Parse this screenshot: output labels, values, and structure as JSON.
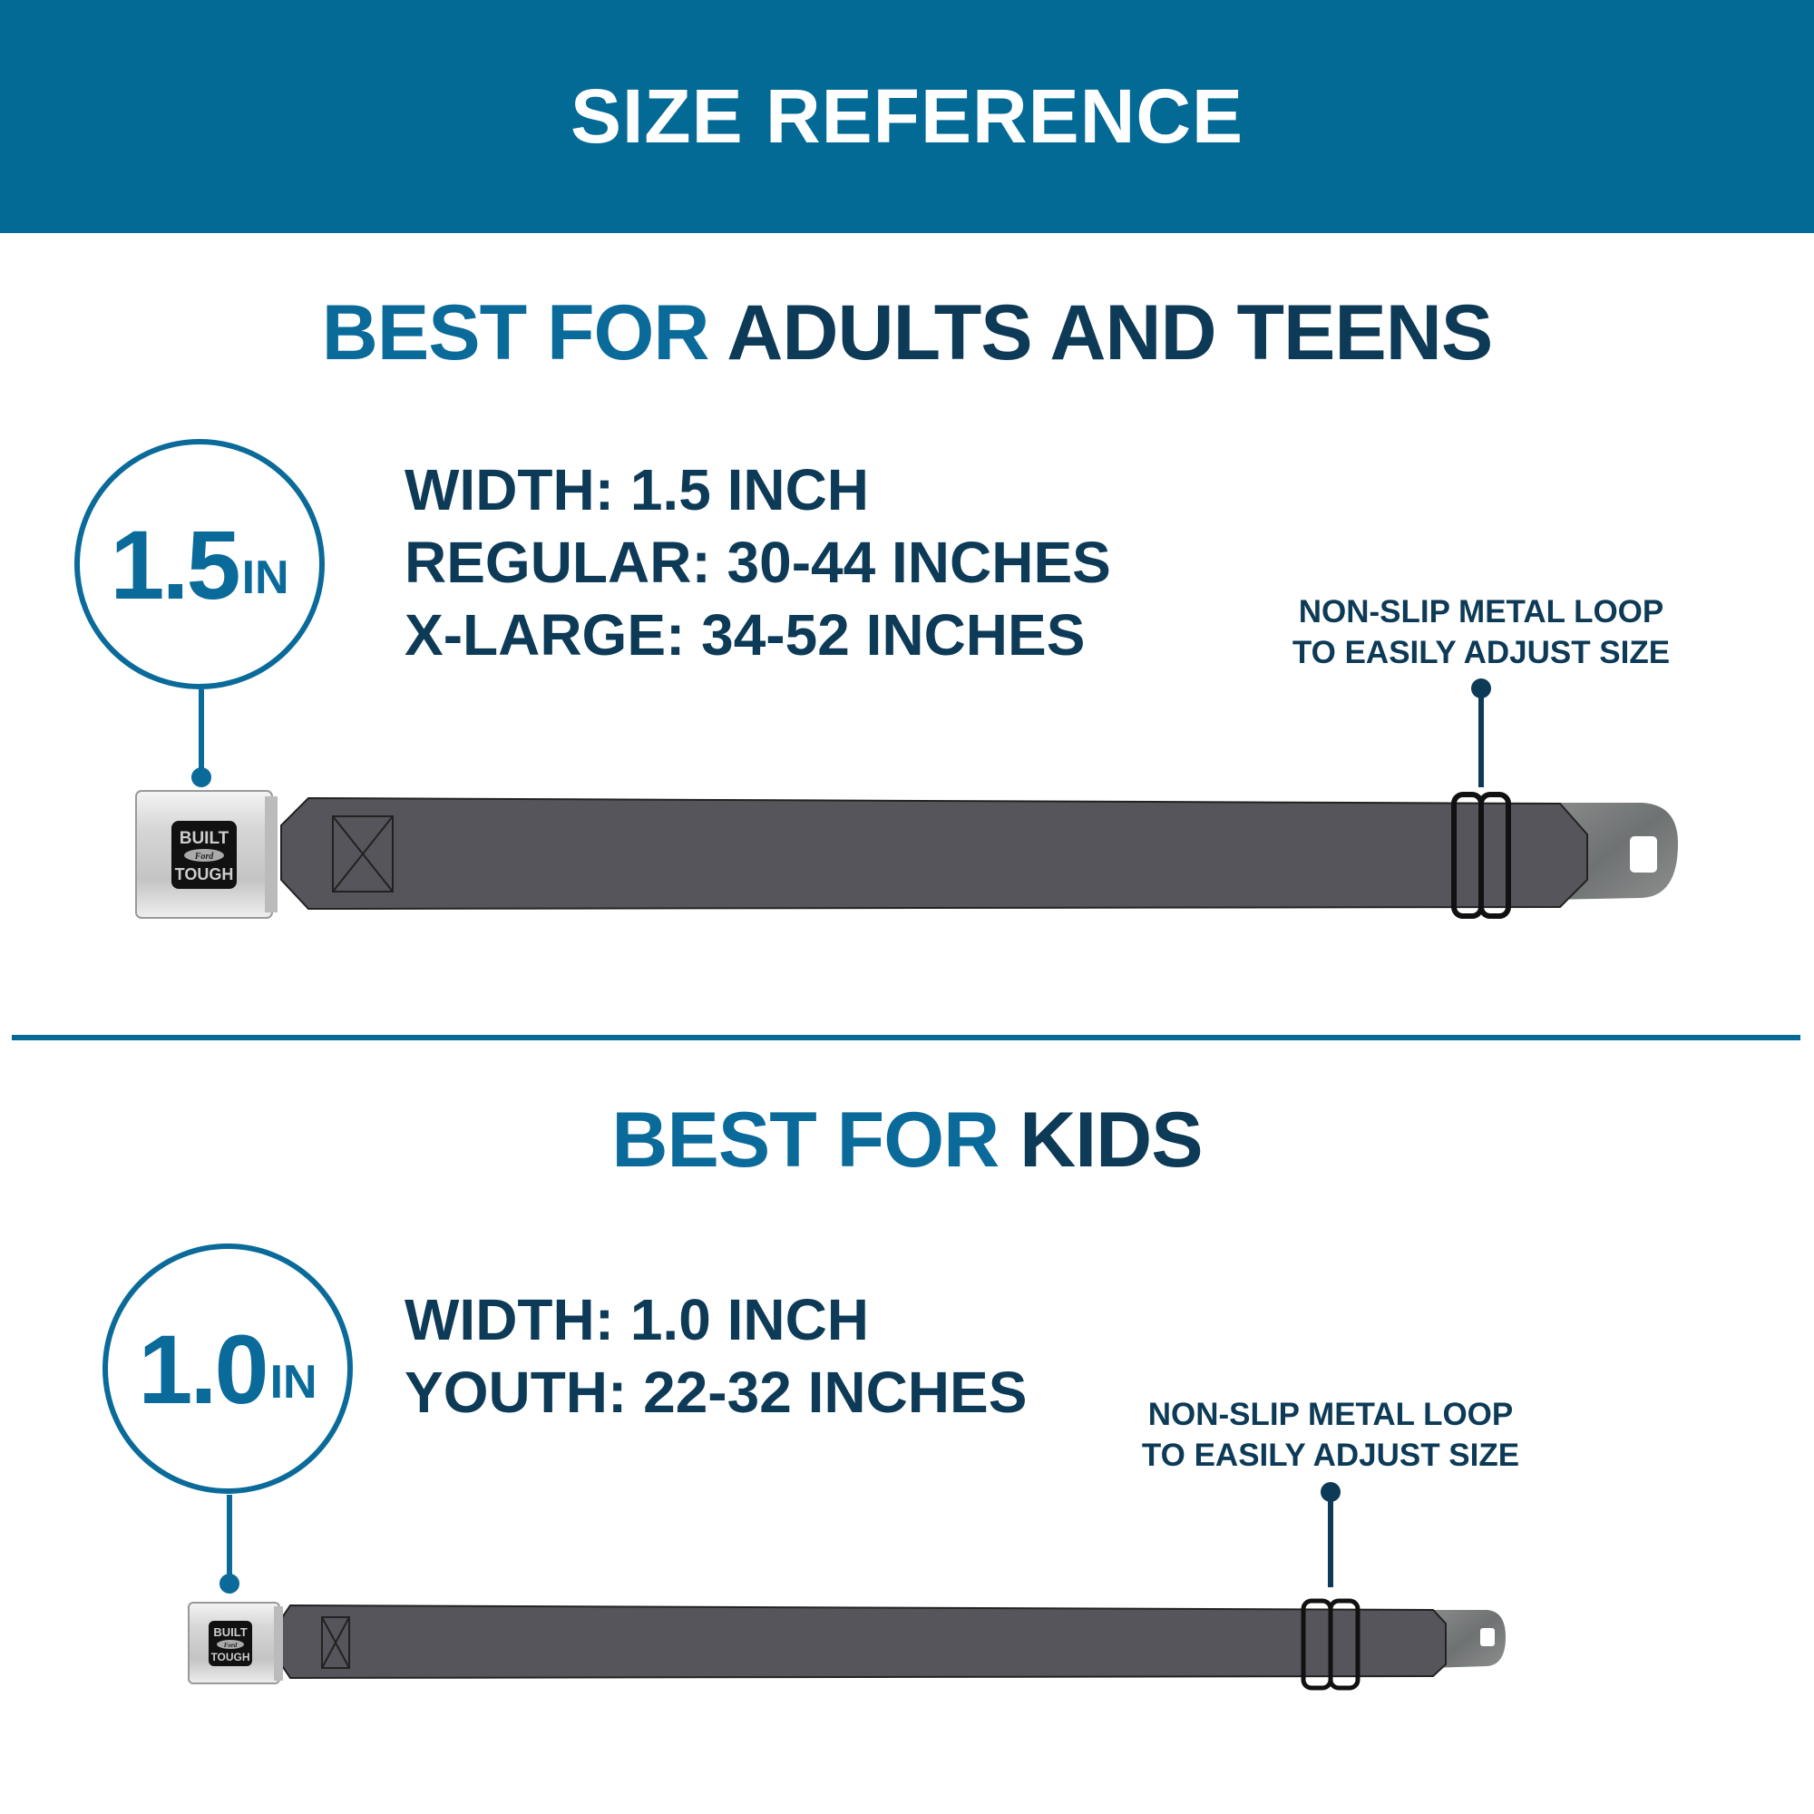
{
  "header": {
    "title": "SIZE REFERENCE"
  },
  "colors": {
    "header_bg": "#036a96",
    "accent_blue": "#0a6a9a",
    "navy": "#0d3a56",
    "strap": "#55555b"
  },
  "adults": {
    "heading_prefix": "BEST FOR",
    "heading_main": "ADULTS AND TEENS",
    "badge_number": "1.5",
    "badge_unit": "IN",
    "specs": [
      "WIDTH: 1.5 INCH",
      "REGULAR: 30-44 INCHES",
      "X-LARGE: 34-52 INCHES"
    ],
    "callout": [
      "NON-SLIP METAL LOOP",
      "TO EASILY ADJUST SIZE"
    ],
    "buckle_logo": [
      "BUILT",
      "Ford",
      "TOUGH"
    ]
  },
  "kids": {
    "heading_prefix": "BEST FOR",
    "heading_main": "KIDS",
    "badge_number": "1.0",
    "badge_unit": "IN",
    "specs": [
      "WIDTH: 1.0 INCH",
      "YOUTH: 22-32 INCHES"
    ],
    "callout": [
      "NON-SLIP METAL LOOP",
      "TO EASILY ADJUST SIZE"
    ],
    "buckle_logo": [
      "BUILT",
      "Ford",
      "TOUGH"
    ]
  }
}
